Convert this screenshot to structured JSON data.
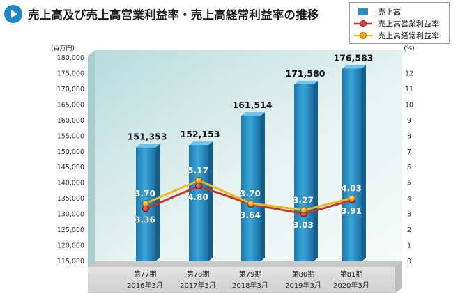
{
  "title": "売上高及び売上高営業利益率・売上高経常利益率の推移",
  "colors": {
    "title_icon": "#1f86c7",
    "bar": "#2a8fc4",
    "operating_margin_line": "#c0392b",
    "ordinary_margin_line": "#f0b81c",
    "plot_background": "#cfe9e6"
  },
  "legend": [
    {
      "label": "売上高",
      "marker": "bar-swatch"
    },
    {
      "label": "売上高営業利益率",
      "marker": "red-line-dot"
    },
    {
      "label": "売上高経常利益率",
      "marker": "yellow-line-dot"
    }
  ],
  "chart_data": {
    "type": "bar+line",
    "categories": [
      [
        "第77期",
        "2016年3月"
      ],
      [
        "第78期",
        "2017年3月"
      ],
      [
        "第79期",
        "2018年3月"
      ],
      [
        "第80期",
        "2019年3月"
      ],
      [
        "第81期",
        "2020年3月"
      ]
    ],
    "left_axis": {
      "unit": "(百万円)",
      "ylim": [
        115000,
        180000
      ],
      "ticks": [
        "115,000",
        "120,000",
        "125,000",
        "130,000",
        "135,000",
        "140,000",
        "145,000",
        "150,000",
        "155,000",
        "160,000",
        "165,000",
        "170,000",
        "175,000",
        "180,000"
      ]
    },
    "right_axis": {
      "unit": "(%)",
      "ylim": [
        0,
        13
      ],
      "ticks": [
        "0",
        "1",
        "2",
        "3",
        "4",
        "5",
        "6",
        "7",
        "8",
        "9",
        "10",
        "11",
        "12"
      ]
    },
    "series": [
      {
        "name": "売上高",
        "type": "bar",
        "axis": "left",
        "values": [
          151353,
          152153,
          161514,
          171580,
          176583
        ],
        "labels": [
          "151,353",
          "152,153",
          "161,514",
          "171,580",
          "176,583"
        ]
      },
      {
        "name": "売上高営業利益率",
        "type": "line",
        "axis": "right",
        "values": [
          3.36,
          4.8,
          3.64,
          3.03,
          3.91
        ],
        "labels": [
          "3.36",
          "4.80",
          "3.64",
          "3.03",
          "3.91"
        ]
      },
      {
        "name": "売上高経常利益率",
        "type": "line",
        "axis": "right",
        "values": [
          3.7,
          5.17,
          3.7,
          3.27,
          4.03
        ],
        "labels": [
          "3.70",
          "5.17",
          "3.70",
          "3.27",
          "4.03"
        ]
      }
    ],
    "grid": false,
    "legend_position": "top-right"
  }
}
